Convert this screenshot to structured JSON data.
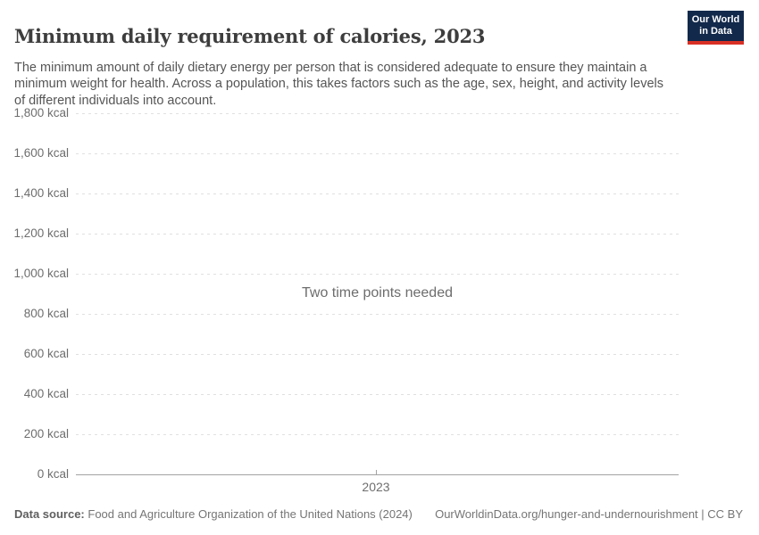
{
  "header": {
    "title": "Minimum daily requirement of calories, 2023",
    "subtitle": "The minimum amount of daily dietary energy per person that is considered adequate to ensure they maintain a minimum weight for health. Across a population, this takes factors such as the age, sex, height, and activity levels of different individuals into account.",
    "logo": {
      "line1": "Our World",
      "line2": "in Data"
    }
  },
  "chart_data": {
    "type": "line",
    "title": "Minimum daily requirement of calories, 2023",
    "empty_message": "Two time points needed",
    "series": [],
    "x_ticks": [
      "2023"
    ],
    "y_ticks": [
      {
        "value": 1800,
        "label": "1,800 kcal"
      },
      {
        "value": 1600,
        "label": "1,600 kcal"
      },
      {
        "value": 1400,
        "label": "1,400 kcal"
      },
      {
        "value": 1200,
        "label": "1,200 kcal"
      },
      {
        "value": 1000,
        "label": "1,000 kcal"
      },
      {
        "value": 800,
        "label": "800 kcal"
      },
      {
        "value": 600,
        "label": "600 kcal"
      },
      {
        "value": 400,
        "label": "400 kcal"
      },
      {
        "value": 200,
        "label": "200 kcal"
      },
      {
        "value": 0,
        "label": "0 kcal"
      }
    ],
    "ylim": [
      0,
      1800
    ],
    "xlabel": "",
    "ylabel": "",
    "grid": true,
    "gridline_style": "dashed",
    "legend": "none"
  },
  "footer": {
    "datasource_label": "Data source:",
    "datasource_value": "Food and Agriculture Organization of the United Nations (2024)",
    "attribution": "OurWorldinData.org/hunger-and-undernourishment | CC BY"
  },
  "colors": {
    "logo_bg": "#12294b",
    "logo_accent": "#d93025",
    "title_text": "#3d3d3d",
    "subtitle_text": "#555555",
    "tick_text": "#6e6e6e",
    "gridline": "#e0e0e0",
    "axis_line": "#a3a3a3",
    "empty_message_text": "#6d6d6d",
    "footer_text": "#757575"
  }
}
